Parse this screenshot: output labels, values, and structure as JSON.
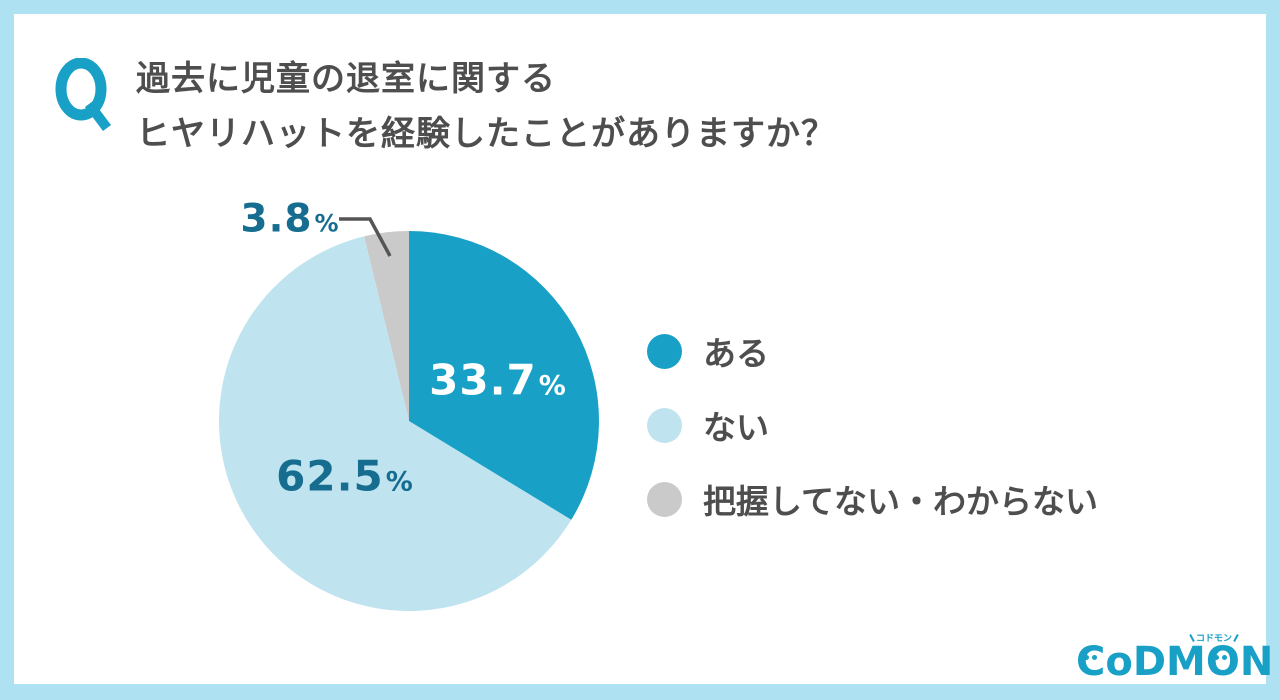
{
  "colors": {
    "accent_teal": "#18A0C6",
    "dark_teal": "#176D90",
    "light_blue_slice": "#BFE4F0",
    "gray_slice": "#CACACA",
    "text_gray": "#4E4E4E",
    "frame_background": "#AEE1F1",
    "card_background": "#FFFFFF",
    "leader_line": "#555555"
  },
  "question": {
    "badge": "Q",
    "title_line1": "過去に児童の退室に関する",
    "title_line2": "ヒヤリハットを経験したことがありますか？"
  },
  "chart_data": {
    "type": "pie",
    "title": "過去に児童の退室に関するヒヤリハットを経験したことがありますか？",
    "start_angle_deg": 0,
    "direction": "clockwise",
    "percent_symbol": "%",
    "legend_position": "right-middle",
    "slices": [
      {
        "label": "ある",
        "value": 33.7,
        "value_label": "33.7",
        "color": "#18A0C6",
        "value_label_color": "#FFFFFF",
        "value_label_position": "inside"
      },
      {
        "label": "ない",
        "value": 62.5,
        "value_label": "62.5",
        "color": "#BFE4F0",
        "value_label_color": "#176D90",
        "value_label_position": "inside"
      },
      {
        "label": "把握してない・わからない",
        "value": 3.8,
        "value_label": "3.8",
        "color": "#CACACA",
        "value_label_color": "#176D90",
        "value_label_position": "outside-callout"
      }
    ]
  },
  "logo": {
    "brand": "CODMON",
    "letters": [
      "C",
      "o",
      "D",
      "M",
      "O",
      "N"
    ],
    "kana_label": "コドモン"
  }
}
